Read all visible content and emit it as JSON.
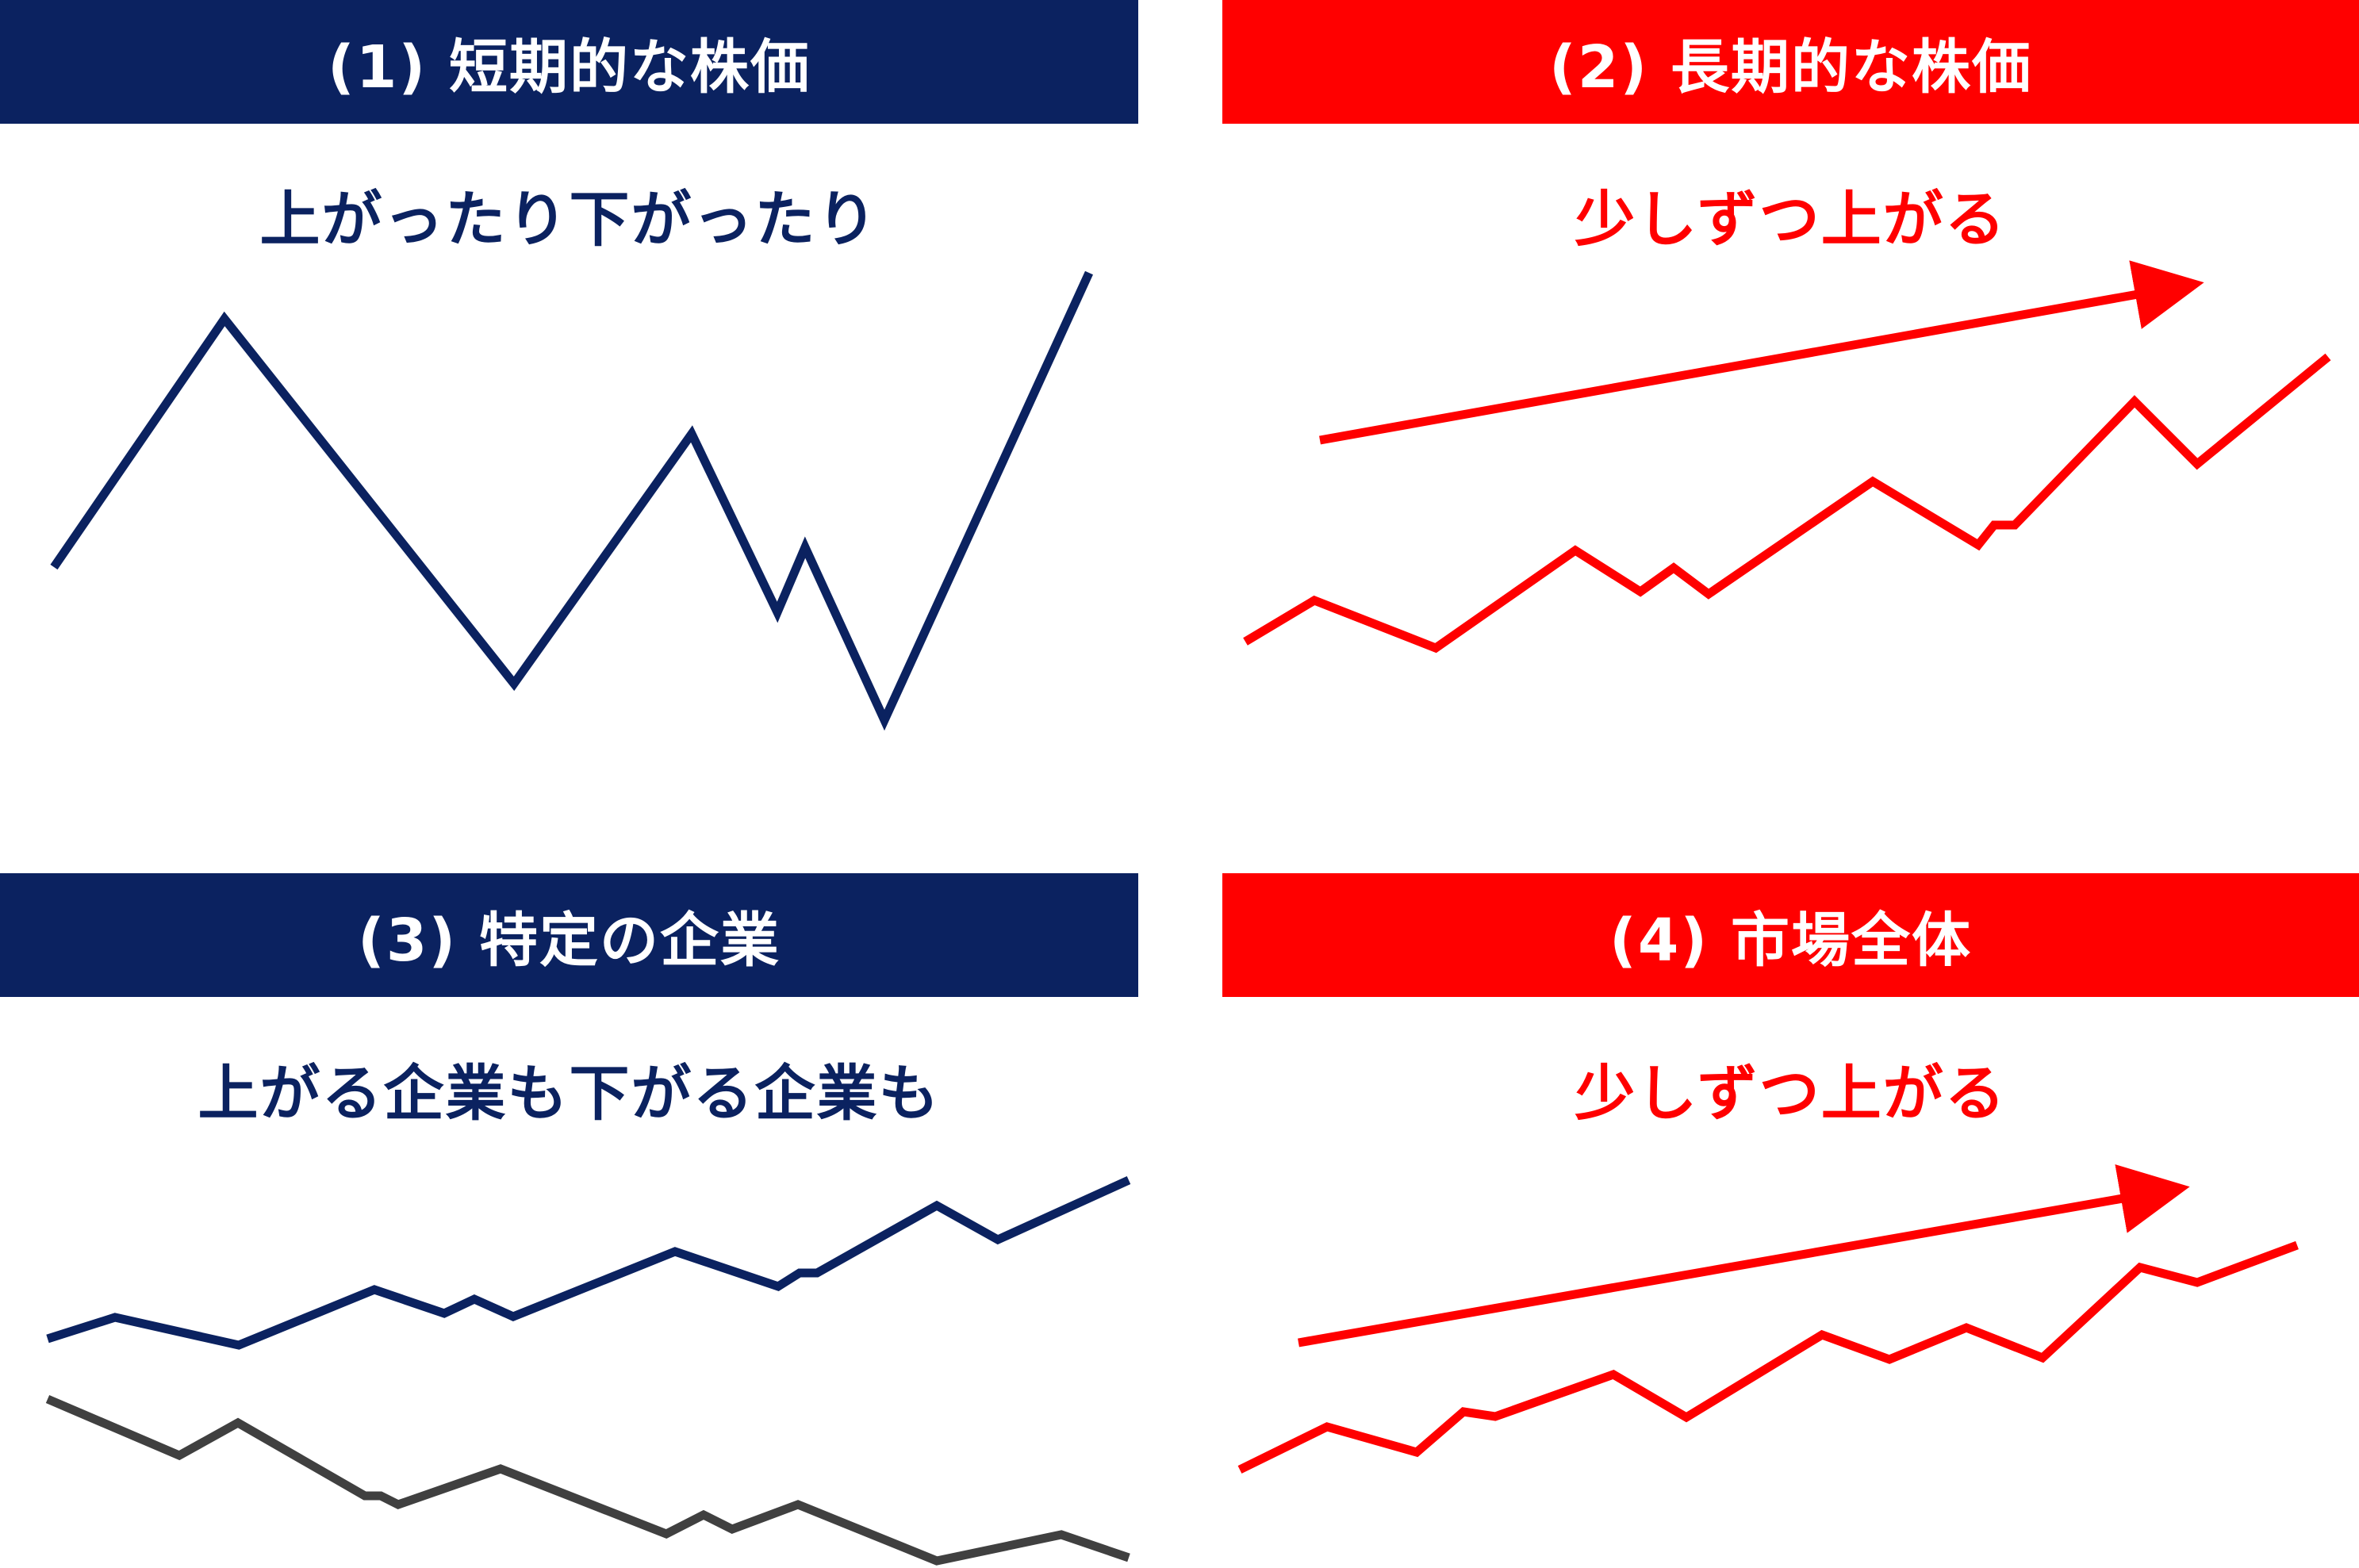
{
  "colors": {
    "navy": "#0b2260",
    "red": "#ff0000",
    "gray": "#404040",
    "white": "#ffffff"
  },
  "panels": [
    {
      "title": "(1) 短期的な株価",
      "subtitle": "上がったり下がったり",
      "theme": "navy"
    },
    {
      "title": "(2) 長期的な株価",
      "subtitle": "少しずつ上がる",
      "theme": "red"
    },
    {
      "title": "(3) 特定の企業",
      "subtitle": "上がる企業も下がる企業も",
      "theme": "navy"
    },
    {
      "title": "(4) 市場全体",
      "subtitle": "少しずつ上がる",
      "theme": "red"
    }
  ],
  "lines": [
    {
      "name": "short-term-price-line",
      "color": "navy"
    },
    {
      "name": "long-term-price-line",
      "color": "red"
    },
    {
      "name": "long-term-trend-arrow",
      "color": "red"
    },
    {
      "name": "rising-company-line",
      "color": "navy"
    },
    {
      "name": "falling-company-line",
      "color": "gray"
    },
    {
      "name": "market-overall-line",
      "color": "red"
    },
    {
      "name": "market-trend-arrow",
      "color": "red"
    }
  ]
}
